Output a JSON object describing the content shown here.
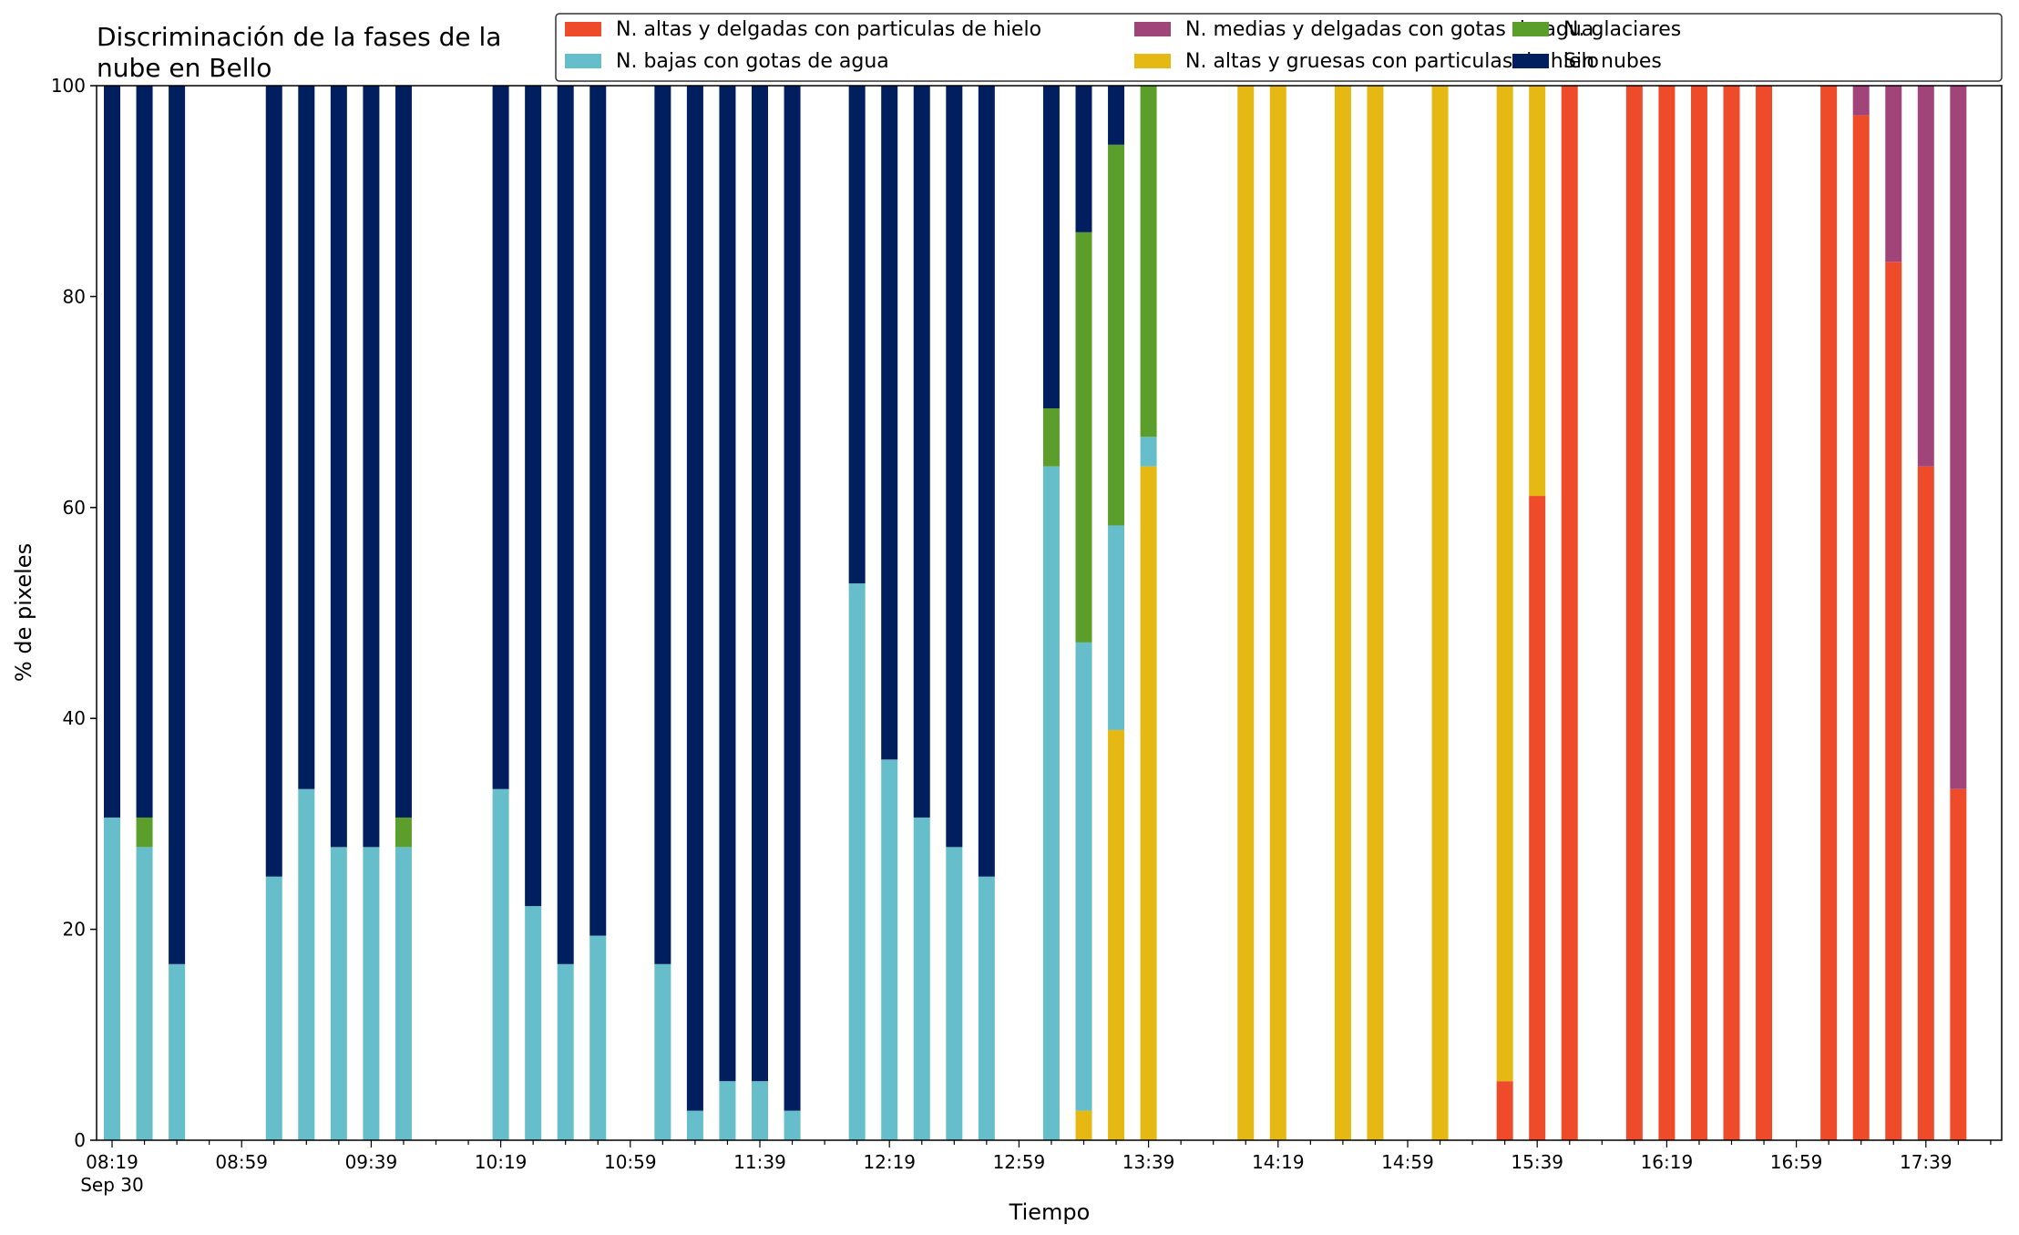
{
  "chart_data": {
    "type": "bar",
    "stacked": true,
    "title_lines": [
      "Discriminación de la fases de la",
      "nube en Bello"
    ],
    "xlabel": "Tiempo",
    "ylabel": "% de pixeles",
    "ylim": [
      0,
      100
    ],
    "yticks": [
      0,
      20,
      40,
      60,
      80,
      100
    ],
    "x_start": "08:19",
    "x_end": "17:59",
    "x_step_minutes": 10,
    "xtick_labels": [
      "08:19",
      "08:59",
      "09:39",
      "10:19",
      "10:59",
      "11:39",
      "12:19",
      "12:59",
      "13:39",
      "14:19",
      "14:59",
      "15:39",
      "16:19",
      "16:59",
      "17:39"
    ],
    "xtick_sublabel": "Sep 30",
    "grid": false,
    "legend_position": "top-right",
    "series": [
      {
        "name": "N. altas y delgadas con particulas de hielo",
        "color": "#ee4b2b"
      },
      {
        "name": "N. altas y gruesas con particulas de hielo",
        "color": "#e5b814"
      },
      {
        "name": "N. bajas con gotas de agua",
        "color": "#67becb"
      },
      {
        "name": "N. glaciares",
        "color": "#5c9e2c"
      },
      {
        "name": "N. medias y delgadas con gotas de agua",
        "color": "#a0447a"
      },
      {
        "name": "Sin nubes",
        "color": "#011f5f"
      }
    ],
    "legend_order": [
      0,
      2,
      4,
      1,
      3,
      5
    ],
    "bars": [
      {
        "time": "08:19",
        "values": [
          0,
          0,
          30.6,
          0,
          0,
          69.4
        ]
      },
      {
        "time": "08:29",
        "values": [
          0,
          0,
          27.8,
          2.8,
          0,
          69.4
        ]
      },
      {
        "time": "08:39",
        "values": [
          0,
          0,
          16.7,
          0,
          0,
          83.3
        ]
      },
      {
        "time": "09:09",
        "values": [
          0,
          0,
          25.0,
          0,
          0,
          75.0
        ]
      },
      {
        "time": "09:19",
        "values": [
          0,
          0,
          33.3,
          0,
          0,
          66.7
        ]
      },
      {
        "time": "09:29",
        "values": [
          0,
          0,
          27.8,
          0,
          0,
          72.2
        ]
      },
      {
        "time": "09:39",
        "values": [
          0,
          0,
          27.8,
          0,
          0,
          72.2
        ]
      },
      {
        "time": "09:49",
        "values": [
          0,
          0,
          27.8,
          2.8,
          0,
          69.4
        ]
      },
      {
        "time": "10:19",
        "values": [
          0,
          0,
          33.3,
          0,
          0,
          66.7
        ]
      },
      {
        "time": "10:29",
        "values": [
          0,
          0,
          22.2,
          0,
          0,
          77.8
        ]
      },
      {
        "time": "10:39",
        "values": [
          0,
          0,
          16.7,
          0,
          0,
          83.3
        ]
      },
      {
        "time": "10:49",
        "values": [
          0,
          0,
          19.4,
          0,
          0,
          80.6
        ]
      },
      {
        "time": "11:09",
        "values": [
          0,
          0,
          16.7,
          0,
          0,
          83.3
        ]
      },
      {
        "time": "11:19",
        "values": [
          0,
          0,
          2.8,
          0,
          0,
          97.2
        ]
      },
      {
        "time": "11:29",
        "values": [
          0,
          0,
          5.6,
          0,
          0,
          94.4
        ]
      },
      {
        "time": "11:39",
        "values": [
          0,
          0,
          5.6,
          0,
          0,
          94.4
        ]
      },
      {
        "time": "11:49",
        "values": [
          0,
          0,
          2.8,
          0,
          0,
          97.2
        ]
      },
      {
        "time": "12:09",
        "values": [
          0,
          0,
          52.8,
          0,
          0,
          47.2
        ]
      },
      {
        "time": "12:19",
        "values": [
          0,
          0,
          36.1,
          0,
          0,
          63.9
        ]
      },
      {
        "time": "12:29",
        "values": [
          0,
          0,
          30.6,
          0,
          0,
          69.4
        ]
      },
      {
        "time": "12:39",
        "values": [
          0,
          0,
          27.8,
          0,
          0,
          72.2
        ]
      },
      {
        "time": "12:49",
        "values": [
          0,
          0,
          25.0,
          0,
          0,
          75.0
        ]
      },
      {
        "time": "13:09",
        "values": [
          0,
          0,
          63.9,
          5.5,
          0,
          30.6
        ]
      },
      {
        "time": "13:19",
        "values": [
          0,
          2.8,
          44.4,
          38.9,
          0,
          13.9
        ]
      },
      {
        "time": "13:29",
        "values": [
          0,
          38.9,
          19.4,
          36.1,
          0,
          5.6
        ]
      },
      {
        "time": "13:39",
        "values": [
          0,
          63.9,
          2.8,
          33.3,
          0,
          0
        ]
      },
      {
        "time": "14:09",
        "values": [
          0,
          100,
          0,
          0,
          0,
          0
        ]
      },
      {
        "time": "14:19",
        "values": [
          0,
          100,
          0,
          0,
          0,
          0
        ]
      },
      {
        "time": "14:39",
        "values": [
          0,
          100,
          0,
          0,
          0,
          0
        ]
      },
      {
        "time": "14:49",
        "values": [
          0,
          100,
          0,
          0,
          0,
          0
        ]
      },
      {
        "time": "15:09",
        "values": [
          0,
          100,
          0,
          0,
          0,
          0
        ]
      },
      {
        "time": "15:29",
        "values": [
          5.6,
          94.4,
          0,
          0,
          0,
          0
        ]
      },
      {
        "time": "15:39",
        "values": [
          61.1,
          38.9,
          0,
          0,
          0,
          0
        ]
      },
      {
        "time": "15:49",
        "values": [
          100,
          0,
          0,
          0,
          0,
          0
        ]
      },
      {
        "time": "16:09",
        "values": [
          100,
          0,
          0,
          0,
          0,
          0
        ]
      },
      {
        "time": "16:19",
        "values": [
          100,
          0,
          0,
          0,
          0,
          0
        ]
      },
      {
        "time": "16:29",
        "values": [
          100,
          0,
          0,
          0,
          0,
          0
        ]
      },
      {
        "time": "16:39",
        "values": [
          100,
          0,
          0,
          0,
          0,
          0
        ]
      },
      {
        "time": "16:49",
        "values": [
          100,
          0,
          0,
          0,
          0,
          0
        ]
      },
      {
        "time": "17:09",
        "values": [
          100,
          0,
          0,
          0,
          0,
          0
        ]
      },
      {
        "time": "17:19",
        "values": [
          97.2,
          0,
          0,
          0,
          2.8,
          0
        ]
      },
      {
        "time": "17:29",
        "values": [
          83.3,
          0,
          0,
          0,
          16.7,
          0
        ]
      },
      {
        "time": "17:39",
        "values": [
          63.9,
          0,
          0,
          0,
          36.1,
          0
        ]
      },
      {
        "time": "17:49",
        "values": [
          33.3,
          0,
          0,
          0,
          66.7,
          0
        ]
      }
    ]
  }
}
